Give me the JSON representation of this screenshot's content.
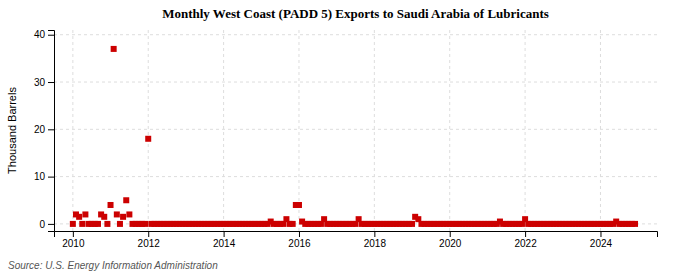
{
  "chart_data": {
    "type": "scatter",
    "title": "Monthly West Coast (PADD 5) Exports to Saudi Arabia of Lubricants",
    "ylabel": "Thousand Barrels",
    "source": "Source: U.S. Energy Information Administration",
    "color": "#cc0000",
    "marker": "square",
    "grid": true,
    "xlim": [
      2009.5,
      2025.5
    ],
    "xticks": [
      2010,
      2012,
      2014,
      2016,
      2018,
      2020,
      2022,
      2024
    ],
    "ylim": [
      -1.5,
      41
    ],
    "yticks": [
      0,
      10,
      20,
      30,
      40
    ],
    "x": [
      2010.0,
      2010.083,
      2010.167,
      2010.25,
      2010.333,
      2010.417,
      2010.5,
      2010.583,
      2010.667,
      2010.75,
      2010.833,
      2010.917,
      2011.0,
      2011.083,
      2011.167,
      2011.25,
      2011.333,
      2011.417,
      2011.5,
      2011.583,
      2011.667,
      2011.75,
      2011.833,
      2011.917,
      2012.0,
      2012.083,
      2012.167,
      2012.25,
      2012.333,
      2012.417,
      2012.5,
      2012.583,
      2012.667,
      2012.75,
      2012.833,
      2012.917,
      2013.0,
      2013.083,
      2013.167,
      2013.25,
      2013.333,
      2013.417,
      2013.5,
      2013.583,
      2013.667,
      2013.75,
      2013.833,
      2013.917,
      2014.0,
      2014.083,
      2014.167,
      2014.25,
      2014.333,
      2014.417,
      2014.5,
      2014.583,
      2014.667,
      2014.75,
      2014.833,
      2014.917,
      2015.0,
      2015.083,
      2015.167,
      2015.25,
      2015.333,
      2015.417,
      2015.5,
      2015.583,
      2015.667,
      2015.75,
      2015.833,
      2015.917,
      2016.0,
      2016.083,
      2016.167,
      2016.25,
      2016.333,
      2016.417,
      2016.5,
      2016.583,
      2016.667,
      2016.75,
      2016.833,
      2016.917,
      2017.0,
      2017.083,
      2017.167,
      2017.25,
      2017.333,
      2017.417,
      2017.5,
      2017.583,
      2017.667,
      2017.75,
      2017.833,
      2017.917,
      2018.0,
      2018.083,
      2018.167,
      2018.25,
      2018.333,
      2018.417,
      2018.5,
      2018.583,
      2018.667,
      2018.75,
      2018.833,
      2018.917,
      2019.0,
      2019.083,
      2019.167,
      2019.25,
      2019.333,
      2019.417,
      2019.5,
      2019.583,
      2019.667,
      2019.75,
      2019.833,
      2019.917,
      2020.0,
      2020.083,
      2020.167,
      2020.25,
      2020.333,
      2020.417,
      2020.5,
      2020.583,
      2020.667,
      2020.75,
      2020.833,
      2020.917,
      2021.0,
      2021.083,
      2021.167,
      2021.25,
      2021.333,
      2021.417,
      2021.5,
      2021.583,
      2021.667,
      2021.75,
      2021.833,
      2021.917,
      2022.0,
      2022.083,
      2022.167,
      2022.25,
      2022.333,
      2022.417,
      2022.5,
      2022.583,
      2022.667,
      2022.75,
      2022.833,
      2022.917,
      2023.0,
      2023.083,
      2023.167,
      2023.25,
      2023.333,
      2023.417,
      2023.5,
      2023.583,
      2023.667,
      2023.75,
      2023.833,
      2023.917,
      2024.0,
      2024.083,
      2024.167,
      2024.25,
      2024.333,
      2024.417,
      2024.5,
      2024.583,
      2024.667,
      2024.75,
      2024.833,
      2024.917
    ],
    "values": [
      0,
      2,
      1.5,
      0,
      2,
      0,
      0,
      0,
      0,
      2,
      1.5,
      0,
      4,
      37,
      2,
      0,
      1.5,
      5,
      2,
      0,
      0,
      0,
      0,
      0,
      18,
      0,
      0,
      0,
      0,
      0,
      0,
      0,
      0,
      0,
      0,
      0,
      0,
      0,
      0,
      0,
      0,
      0,
      0,
      0,
      0,
      0,
      0,
      0,
      0,
      0,
      0,
      0,
      0,
      0,
      0,
      0,
      0,
      0,
      0,
      0,
      0,
      0,
      0,
      0.5,
      0,
      0,
      0,
      0,
      1,
      0,
      0,
      4,
      4,
      0.5,
      0,
      0,
      0,
      0,
      0,
      0,
      1,
      0,
      0,
      0,
      0,
      0,
      0,
      0,
      0,
      0,
      0,
      1,
      0,
      0,
      0,
      0,
      0,
      0,
      0,
      0,
      0,
      0,
      0,
      0,
      0,
      0,
      0,
      0,
      0,
      1.5,
      1,
      0,
      0,
      0,
      0,
      0,
      0,
      0,
      0,
      0,
      0,
      0,
      0,
      0,
      0,
      0,
      0,
      0,
      0,
      0,
      0,
      0,
      0,
      0,
      0,
      0,
      0.5,
      0,
      0,
      0,
      0,
      0,
      0,
      0,
      1,
      0,
      0,
      0,
      0,
      0,
      0,
      0,
      0,
      0,
      0,
      0,
      0,
      0,
      0,
      0,
      0,
      0,
      0,
      0,
      0,
      0,
      0,
      0,
      0,
      0,
      0,
      0,
      0,
      0.5,
      0,
      0,
      0,
      0,
      0,
      0
    ]
  }
}
